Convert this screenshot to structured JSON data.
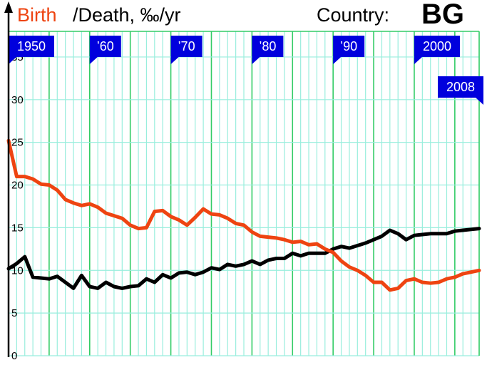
{
  "header": {
    "birth_label": "Birth",
    "death_label": "/Death, ‰/yr",
    "country_label": "Country:",
    "country_code": "BG"
  },
  "colors": {
    "birth": "#ee4411",
    "death": "#000000",
    "grid_minor": "#99eedd",
    "grid_major": "#33cc66",
    "flag": "#0000dd"
  },
  "chart_data": {
    "type": "line",
    "title": "",
    "xlabel": "",
    "ylabel": "",
    "xlim": [
      1950,
      2008
    ],
    "ylim": [
      0,
      38
    ],
    "yticks": [
      0,
      5,
      10,
      15,
      20,
      25,
      30,
      35
    ],
    "decade_flags": [
      {
        "year": 1950,
        "label": "1950"
      },
      {
        "year": 1960,
        "label": "’60"
      },
      {
        "year": 1970,
        "label": "’70"
      },
      {
        "year": 1980,
        "label": "’80"
      },
      {
        "year": 1990,
        "label": "’90"
      },
      {
        "year": 2000,
        "label": "2000"
      },
      {
        "year": 2008,
        "label": "2008"
      }
    ],
    "x": [
      1950,
      1951,
      1952,
      1953,
      1954,
      1955,
      1956,
      1957,
      1958,
      1959,
      1960,
      1961,
      1962,
      1963,
      1964,
      1965,
      1966,
      1967,
      1968,
      1969,
      1970,
      1971,
      1972,
      1973,
      1974,
      1975,
      1976,
      1977,
      1978,
      1979,
      1980,
      1981,
      1982,
      1983,
      1984,
      1985,
      1986,
      1987,
      1988,
      1989,
      1990,
      1991,
      1992,
      1993,
      1994,
      1995,
      1996,
      1997,
      1998,
      1999,
      2000,
      2001,
      2002,
      2003,
      2004,
      2005,
      2006,
      2007,
      2008
    ],
    "series": [
      {
        "key": "birth",
        "values": [
          25.2,
          21.0,
          21.0,
          20.7,
          20.1,
          20.0,
          19.4,
          18.3,
          17.9,
          17.6,
          17.8,
          17.4,
          16.7,
          16.4,
          16.1,
          15.3,
          14.9,
          15.0,
          16.9,
          17.0,
          16.3,
          15.9,
          15.3,
          16.2,
          17.2,
          16.6,
          16.5,
          16.1,
          15.5,
          15.3,
          14.5,
          14.0,
          13.9,
          13.8,
          13.6,
          13.3,
          13.4,
          13.0,
          13.1,
          12.5,
          12.1,
          11.1,
          10.4,
          10.0,
          9.4,
          8.6,
          8.6,
          7.7,
          7.9,
          8.8,
          9.0,
          8.6,
          8.5,
          8.6,
          9.0,
          9.2,
          9.6,
          9.8,
          10.0
        ]
      },
      {
        "key": "death",
        "values": [
          10.2,
          10.8,
          11.6,
          9.2,
          9.1,
          9.0,
          9.3,
          8.6,
          7.9,
          9.4,
          8.1,
          7.9,
          8.6,
          8.1,
          7.9,
          8.1,
          8.2,
          9.0,
          8.6,
          9.5,
          9.1,
          9.7,
          9.8,
          9.5,
          9.8,
          10.3,
          10.1,
          10.7,
          10.5,
          10.7,
          11.1,
          10.7,
          11.2,
          11.4,
          11.4,
          12.0,
          11.7,
          12.0,
          12.0,
          12.0,
          12.5,
          12.8,
          12.6,
          12.9,
          13.2,
          13.6,
          14.0,
          14.7,
          14.3,
          13.6,
          14.1,
          14.2,
          14.3,
          14.3,
          14.3,
          14.6,
          14.7,
          14.8,
          14.9
        ]
      }
    ]
  }
}
